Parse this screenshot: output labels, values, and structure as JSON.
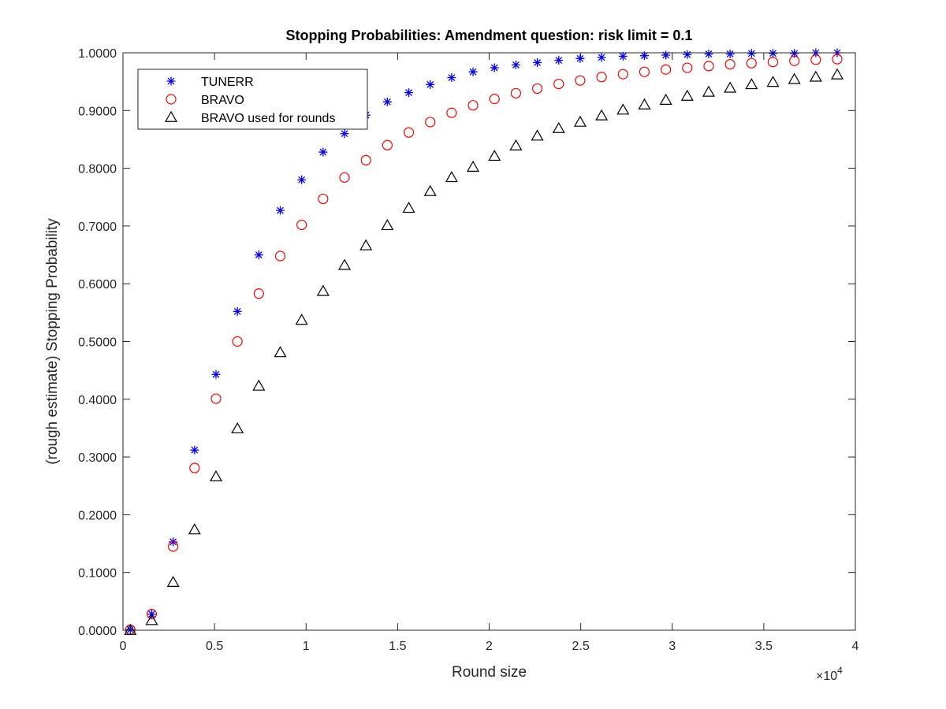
{
  "chart_data": {
    "type": "scatter",
    "title": "Stopping Probabilities: Amendment question: risk limit = 0.1",
    "xlabel": "Round size",
    "ylabel": "(rough estimate) Stopping Probability",
    "x_exponent_label": "×10",
    "x_exponent_power": "4",
    "xlim": [
      0,
      40000
    ],
    "ylim": [
      0,
      1
    ],
    "x_ticks": [
      0,
      5000,
      10000,
      15000,
      20000,
      25000,
      30000,
      35000,
      40000
    ],
    "x_tick_labels": [
      "0",
      "0.5",
      "1",
      "1.5",
      "2",
      "2.5",
      "3",
      "3.5",
      "4"
    ],
    "y_ticks": [
      0,
      0.1,
      0.2,
      0.3,
      0.4,
      0.5,
      0.6,
      0.7,
      0.8,
      0.9,
      1.0
    ],
    "y_tick_labels": [
      "0.0000",
      "0.1000",
      "0.2000",
      "0.3000",
      "0.4000",
      "0.5000",
      "0.6000",
      "0.7000",
      "0.8000",
      "0.9000",
      "1.0000"
    ],
    "grid": false,
    "legend_position": "top-left",
    "x": [
      400,
      1570,
      2740,
      3910,
      5080,
      6250,
      7420,
      8590,
      9760,
      10930,
      12100,
      13270,
      14440,
      15610,
      16780,
      17950,
      19120,
      20290,
      21460,
      22630,
      23800,
      24970,
      26140,
      27310,
      28480,
      29650,
      30820,
      31990,
      33160,
      34330,
      35500,
      36670,
      37840,
      39010
    ],
    "series": [
      {
        "name": "TUNERR",
        "marker": "asterisk",
        "color": "#0000ff",
        "values": [
          0.001,
          0.028,
          0.153,
          0.312,
          0.443,
          0.552,
          0.65,
          0.727,
          0.78,
          0.828,
          0.86,
          0.892,
          0.915,
          0.931,
          0.945,
          0.957,
          0.967,
          0.974,
          0.979,
          0.983,
          0.987,
          0.99,
          0.992,
          0.994,
          0.995,
          0.996,
          0.997,
          0.998,
          0.998,
          0.999,
          0.999,
          0.999,
          1.0,
          1.0
        ]
      },
      {
        "name": "BRAVO",
        "marker": "circle",
        "color": "#ff0000",
        "values": [
          0.001,
          0.028,
          0.145,
          0.281,
          0.401,
          0.5,
          0.583,
          0.648,
          0.702,
          0.747,
          0.784,
          0.814,
          0.84,
          0.862,
          0.88,
          0.896,
          0.909,
          0.92,
          0.93,
          0.938,
          0.946,
          0.952,
          0.958,
          0.963,
          0.967,
          0.971,
          0.974,
          0.977,
          0.98,
          0.982,
          0.984,
          0.986,
          0.988,
          0.989
        ]
      },
      {
        "name": "BRAVO used for rounds",
        "marker": "triangle",
        "color": "#000000",
        "values": [
          0.0,
          0.017,
          0.083,
          0.174,
          0.266,
          0.349,
          0.423,
          0.481,
          0.537,
          0.587,
          0.632,
          0.666,
          0.701,
          0.731,
          0.76,
          0.784,
          0.802,
          0.821,
          0.839,
          0.856,
          0.869,
          0.88,
          0.891,
          0.901,
          0.91,
          0.918,
          0.925,
          0.932,
          0.939,
          0.945,
          0.949,
          0.954,
          0.958,
          0.962
        ]
      }
    ]
  }
}
